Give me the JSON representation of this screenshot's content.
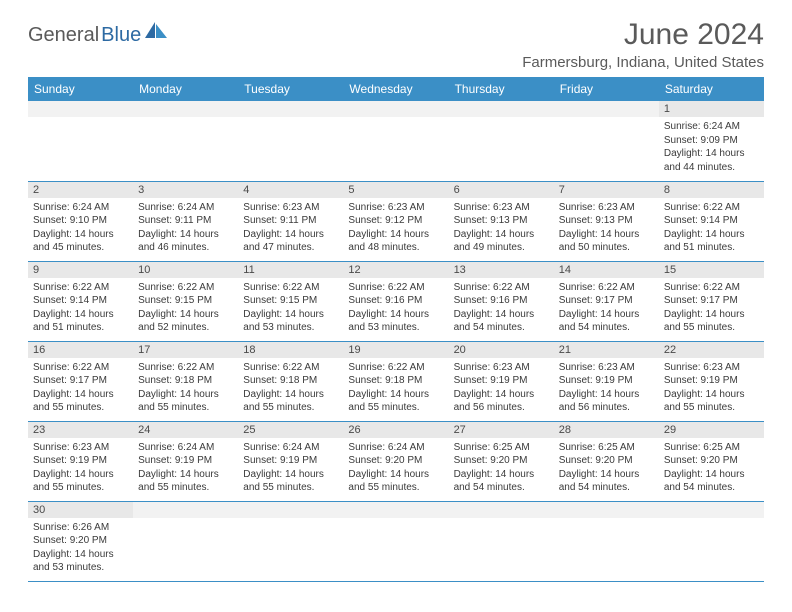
{
  "logo": {
    "text1": "General",
    "text2": "Blue"
  },
  "title": "June 2024",
  "location": "Farmersburg, Indiana, United States",
  "columns": [
    "Sunday",
    "Monday",
    "Tuesday",
    "Wednesday",
    "Thursday",
    "Friday",
    "Saturday"
  ],
  "startOffset": 6,
  "days": [
    {
      "n": 1,
      "sunrise": "6:24 AM",
      "sunset": "9:09 PM",
      "dlh": 14,
      "dlm": 44
    },
    {
      "n": 2,
      "sunrise": "6:24 AM",
      "sunset": "9:10 PM",
      "dlh": 14,
      "dlm": 45
    },
    {
      "n": 3,
      "sunrise": "6:24 AM",
      "sunset": "9:11 PM",
      "dlh": 14,
      "dlm": 46
    },
    {
      "n": 4,
      "sunrise": "6:23 AM",
      "sunset": "9:11 PM",
      "dlh": 14,
      "dlm": 47
    },
    {
      "n": 5,
      "sunrise": "6:23 AM",
      "sunset": "9:12 PM",
      "dlh": 14,
      "dlm": 48
    },
    {
      "n": 6,
      "sunrise": "6:23 AM",
      "sunset": "9:13 PM",
      "dlh": 14,
      "dlm": 49
    },
    {
      "n": 7,
      "sunrise": "6:23 AM",
      "sunset": "9:13 PM",
      "dlh": 14,
      "dlm": 50
    },
    {
      "n": 8,
      "sunrise": "6:22 AM",
      "sunset": "9:14 PM",
      "dlh": 14,
      "dlm": 51
    },
    {
      "n": 9,
      "sunrise": "6:22 AM",
      "sunset": "9:14 PM",
      "dlh": 14,
      "dlm": 51
    },
    {
      "n": 10,
      "sunrise": "6:22 AM",
      "sunset": "9:15 PM",
      "dlh": 14,
      "dlm": 52
    },
    {
      "n": 11,
      "sunrise": "6:22 AM",
      "sunset": "9:15 PM",
      "dlh": 14,
      "dlm": 53
    },
    {
      "n": 12,
      "sunrise": "6:22 AM",
      "sunset": "9:16 PM",
      "dlh": 14,
      "dlm": 53
    },
    {
      "n": 13,
      "sunrise": "6:22 AM",
      "sunset": "9:16 PM",
      "dlh": 14,
      "dlm": 54
    },
    {
      "n": 14,
      "sunrise": "6:22 AM",
      "sunset": "9:17 PM",
      "dlh": 14,
      "dlm": 54
    },
    {
      "n": 15,
      "sunrise": "6:22 AM",
      "sunset": "9:17 PM",
      "dlh": 14,
      "dlm": 55
    },
    {
      "n": 16,
      "sunrise": "6:22 AM",
      "sunset": "9:17 PM",
      "dlh": 14,
      "dlm": 55
    },
    {
      "n": 17,
      "sunrise": "6:22 AM",
      "sunset": "9:18 PM",
      "dlh": 14,
      "dlm": 55
    },
    {
      "n": 18,
      "sunrise": "6:22 AM",
      "sunset": "9:18 PM",
      "dlh": 14,
      "dlm": 55
    },
    {
      "n": 19,
      "sunrise": "6:22 AM",
      "sunset": "9:18 PM",
      "dlh": 14,
      "dlm": 55
    },
    {
      "n": 20,
      "sunrise": "6:23 AM",
      "sunset": "9:19 PM",
      "dlh": 14,
      "dlm": 56
    },
    {
      "n": 21,
      "sunrise": "6:23 AM",
      "sunset": "9:19 PM",
      "dlh": 14,
      "dlm": 56
    },
    {
      "n": 22,
      "sunrise": "6:23 AM",
      "sunset": "9:19 PM",
      "dlh": 14,
      "dlm": 55
    },
    {
      "n": 23,
      "sunrise": "6:23 AM",
      "sunset": "9:19 PM",
      "dlh": 14,
      "dlm": 55
    },
    {
      "n": 24,
      "sunrise": "6:24 AM",
      "sunset": "9:19 PM",
      "dlh": 14,
      "dlm": 55
    },
    {
      "n": 25,
      "sunrise": "6:24 AM",
      "sunset": "9:19 PM",
      "dlh": 14,
      "dlm": 55
    },
    {
      "n": 26,
      "sunrise": "6:24 AM",
      "sunset": "9:20 PM",
      "dlh": 14,
      "dlm": 55
    },
    {
      "n": 27,
      "sunrise": "6:25 AM",
      "sunset": "9:20 PM",
      "dlh": 14,
      "dlm": 54
    },
    {
      "n": 28,
      "sunrise": "6:25 AM",
      "sunset": "9:20 PM",
      "dlh": 14,
      "dlm": 54
    },
    {
      "n": 29,
      "sunrise": "6:25 AM",
      "sunset": "9:20 PM",
      "dlh": 14,
      "dlm": 54
    },
    {
      "n": 30,
      "sunrise": "6:26 AM",
      "sunset": "9:20 PM",
      "dlh": 14,
      "dlm": 53
    }
  ],
  "labels": {
    "sunrise": "Sunrise:",
    "sunset": "Sunset:",
    "daylight1": "Daylight:",
    "hours": "hours",
    "and": "and",
    "minutes": "minutes."
  },
  "colors": {
    "headerBg": "#3b8fc6",
    "headerText": "#ffffff",
    "dayNumBg": "#e8e8e8",
    "border": "#3b8fc6",
    "text": "#3a3a3a"
  }
}
